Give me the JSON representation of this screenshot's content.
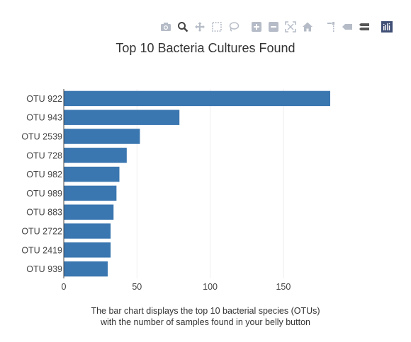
{
  "modebar": {
    "buttons": [
      {
        "name": "download-plot-button",
        "icon": "camera-icon",
        "title": "Download plot as a png"
      },
      {
        "name": "zoom-button",
        "icon": "zoom-icon",
        "title": "Zoom",
        "active": true
      },
      {
        "name": "pan-button",
        "icon": "pan-icon",
        "title": "Pan"
      },
      {
        "name": "box-select-button",
        "icon": "box-select-icon",
        "title": "Box Select"
      },
      {
        "name": "lasso-select-button",
        "icon": "lasso-icon",
        "title": "Lasso Select"
      },
      {
        "name": "zoom-in-button",
        "icon": "zoom-in-icon",
        "title": "Zoom in"
      },
      {
        "name": "zoom-out-button",
        "icon": "zoom-out-icon",
        "title": "Zoom out"
      },
      {
        "name": "autoscale-button",
        "icon": "autoscale-icon",
        "title": "Autoscale"
      },
      {
        "name": "reset-axes-button",
        "icon": "home-icon",
        "title": "Reset axes"
      },
      {
        "name": "spike-lines-button",
        "icon": "spikeline-icon",
        "title": "Toggle Spike Lines"
      },
      {
        "name": "hover-closest-button",
        "icon": "hover-closest-icon",
        "title": "Show closest data on hover"
      },
      {
        "name": "hover-compare-button",
        "icon": "hover-compare-icon",
        "title": "Compare data on hover"
      },
      {
        "name": "plotly-logo-link",
        "icon": "plotly-logo-icon",
        "title": "Produced with Plotly"
      }
    ]
  },
  "chart_data": {
    "type": "bar",
    "orientation": "horizontal",
    "title": "Top 10 Bacteria Cultures Found",
    "categories": [
      "OTU 922",
      "OTU 943",
      "OTU 2539",
      "OTU 728",
      "OTU 982",
      "OTU 989",
      "OTU 883",
      "OTU 2722",
      "OTU 2419",
      "OTU 939"
    ],
    "values": [
      182,
      79,
      52,
      43,
      38,
      36,
      34,
      32,
      32,
      30
    ],
    "xlim": [
      0,
      182
    ],
    "xticks": [
      0,
      50,
      100,
      150
    ],
    "grid": true,
    "bar_color": "#3a76b0",
    "annotation": [
      "The bar chart displays the top 10 bacterial species (OTUs)",
      "with the number of samples found in your belly button"
    ]
  }
}
